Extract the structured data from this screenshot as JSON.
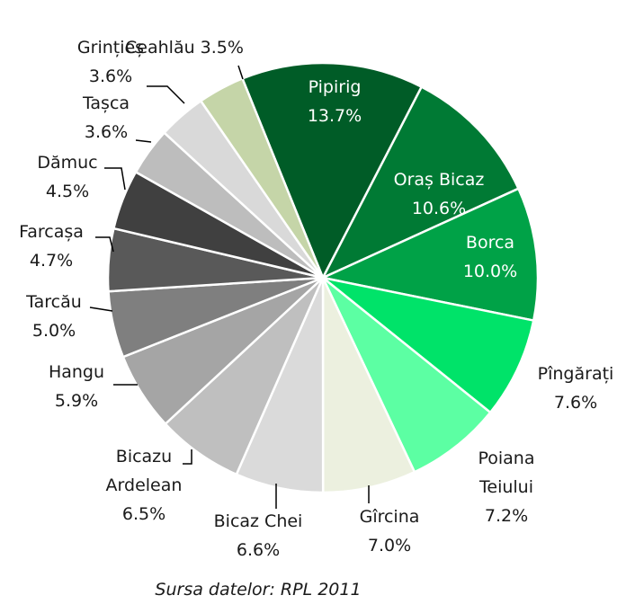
{
  "chart_data": {
    "type": "pie",
    "title": "",
    "source": "Sursa datelor: RPL 2011",
    "slices": [
      {
        "label": [
          "Pipirig"
        ],
        "value": 13.7,
        "display": "13.7%",
        "color": "#005c27"
      },
      {
        "label": [
          "Oraș Bicaz"
        ],
        "value": 10.6,
        "display": "10.6%",
        "color": "#007a34"
      },
      {
        "label": [
          "Borca"
        ],
        "value": 10.0,
        "display": "10.0%",
        "color": "#00a247"
      },
      {
        "label": [
          "Pîngărați"
        ],
        "value": 7.6,
        "display": "7.6%",
        "color": "#00e369"
      },
      {
        "label": [
          "Poiana",
          "Teiului"
        ],
        "value": 7.2,
        "display": "7.2%",
        "color": "#5cffa3"
      },
      {
        "label": [
          "Gîrcina"
        ],
        "value": 7.0,
        "display": "7.0%",
        "color": "#ecf0df"
      },
      {
        "label": [
          "Bicaz Chei"
        ],
        "value": 6.6,
        "display": "6.6%",
        "color": "#dadada"
      },
      {
        "label": [
          "Bicazu",
          "Ardelean"
        ],
        "value": 6.5,
        "display": "6.5%",
        "color": "#bfbfbf"
      },
      {
        "label": [
          "Hangu"
        ],
        "value": 5.9,
        "display": "5.9%",
        "color": "#a5a5a5"
      },
      {
        "label": [
          "Tarcău"
        ],
        "value": 5.0,
        "display": "5.0%",
        "color": "#7f7f7f"
      },
      {
        "label": [
          "Farcașa"
        ],
        "value": 4.7,
        "display": "4.7%",
        "color": "#595959"
      },
      {
        "label": [
          "Dămuc"
        ],
        "value": 4.5,
        "display": "4.5%",
        "color": "#404040"
      },
      {
        "label": [
          "Tașca"
        ],
        "value": 3.6,
        "display": "3.6%",
        "color": "#bdbdbd"
      },
      {
        "label": [
          "Grințieș"
        ],
        "value": 3.6,
        "display": "3.6%",
        "color": "#d9d9d9"
      },
      {
        "label": [
          "Ceahlău"
        ],
        "value": 3.5,
        "display": "3.5%",
        "color": "#c5d5a8"
      }
    ]
  }
}
